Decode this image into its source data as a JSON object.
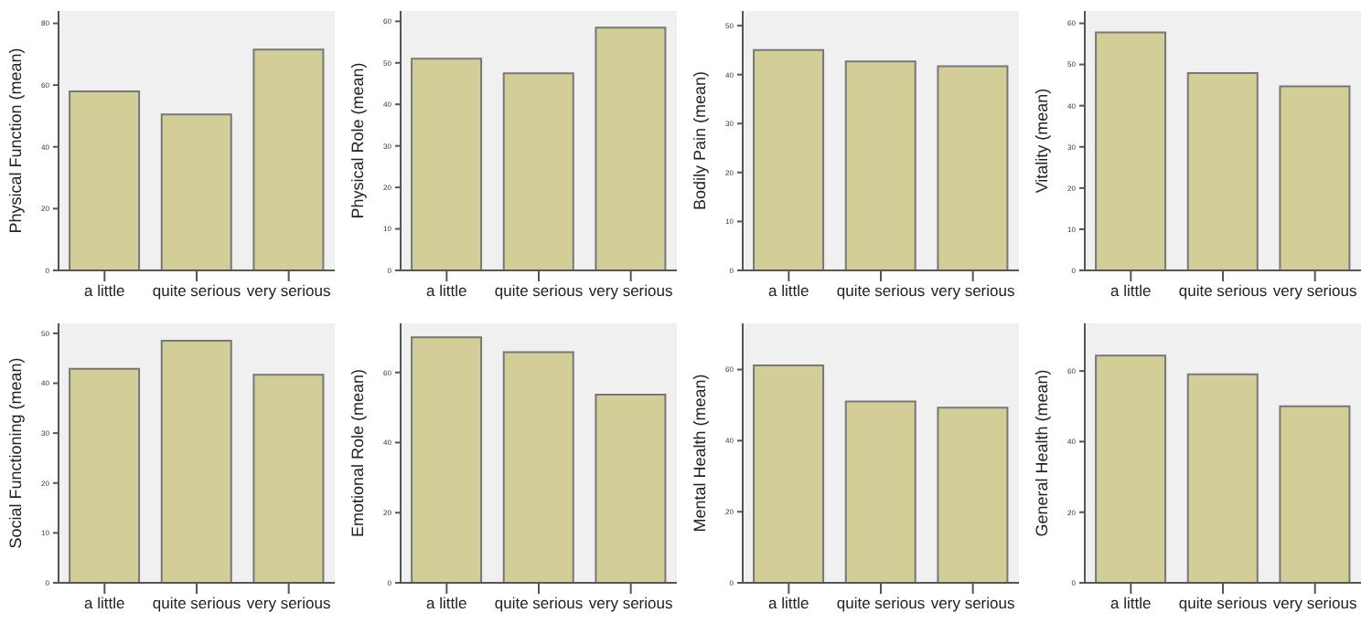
{
  "chart_data": [
    {
      "type": "bar",
      "ylabel": "Physical Function (mean)",
      "categories": [
        "a little",
        "quite serious",
        "very serious"
      ],
      "values": [
        58,
        50.5,
        71.5
      ],
      "color": "#d3ce98",
      "ylim": [
        0,
        84
      ],
      "yticks": [
        0,
        20,
        40,
        60,
        80
      ]
    },
    {
      "type": "bar",
      "ylabel": "Physical Role (mean)",
      "categories": [
        "a little",
        "quite serious",
        "very serious"
      ],
      "values": [
        51,
        47.5,
        58.5
      ],
      "color": "#d3ce98",
      "ylim": [
        0,
        62.5
      ],
      "yticks": [
        0,
        10,
        20,
        30,
        40,
        50,
        60
      ]
    },
    {
      "type": "bar",
      "ylabel": "Bodily Pain (mean)",
      "categories": [
        "a little",
        "quite serious",
        "very serious"
      ],
      "values": [
        45,
        42.7,
        41.7
      ],
      "color": "#d3ce98",
      "ylim": [
        0,
        53
      ],
      "yticks": [
        0,
        10,
        20,
        30,
        40,
        50
      ]
    },
    {
      "type": "bar",
      "ylabel": "Vitality (mean)",
      "categories": [
        "a little",
        "quite serious",
        "very serious"
      ],
      "values": [
        57.8,
        47.9,
        44.7
      ],
      "color": "#d3ce98",
      "ylim": [
        0,
        63
      ],
      "yticks": [
        0,
        10,
        20,
        30,
        40,
        50,
        60
      ]
    },
    {
      "type": "bar",
      "ylabel": "Social Functioning (mean)",
      "categories": [
        "a little",
        "quite serious",
        "very serious"
      ],
      "values": [
        42.9,
        48.5,
        41.7
      ],
      "color": "#d3ce98",
      "ylim": [
        0,
        52
      ],
      "yticks": [
        0,
        10,
        20,
        30,
        40,
        50
      ]
    },
    {
      "type": "bar",
      "ylabel": "Emotional Role (mean)",
      "categories": [
        "a little",
        "quite serious",
        "very serious"
      ],
      "values": [
        70,
        65.8,
        53.7
      ],
      "color": "#d3ce98",
      "ylim": [
        0,
        74
      ],
      "yticks": [
        0,
        20,
        40,
        60
      ]
    },
    {
      "type": "bar",
      "ylabel": "Mental Health (mean)",
      "categories": [
        "a little",
        "quite serious",
        "very serious"
      ],
      "values": [
        61.2,
        51,
        49.3
      ],
      "color": "#d3ce98",
      "ylim": [
        0,
        73
      ],
      "yticks": [
        0,
        20,
        40,
        60
      ]
    },
    {
      "type": "bar",
      "ylabel": "General Health (mean)",
      "categories": [
        "a little",
        "quite serious",
        "very serious"
      ],
      "values": [
        64.4,
        59.1,
        50
      ],
      "color": "#d3ce98",
      "ylim": [
        0,
        73.5
      ],
      "yticks": [
        0,
        20,
        40,
        60
      ]
    }
  ]
}
